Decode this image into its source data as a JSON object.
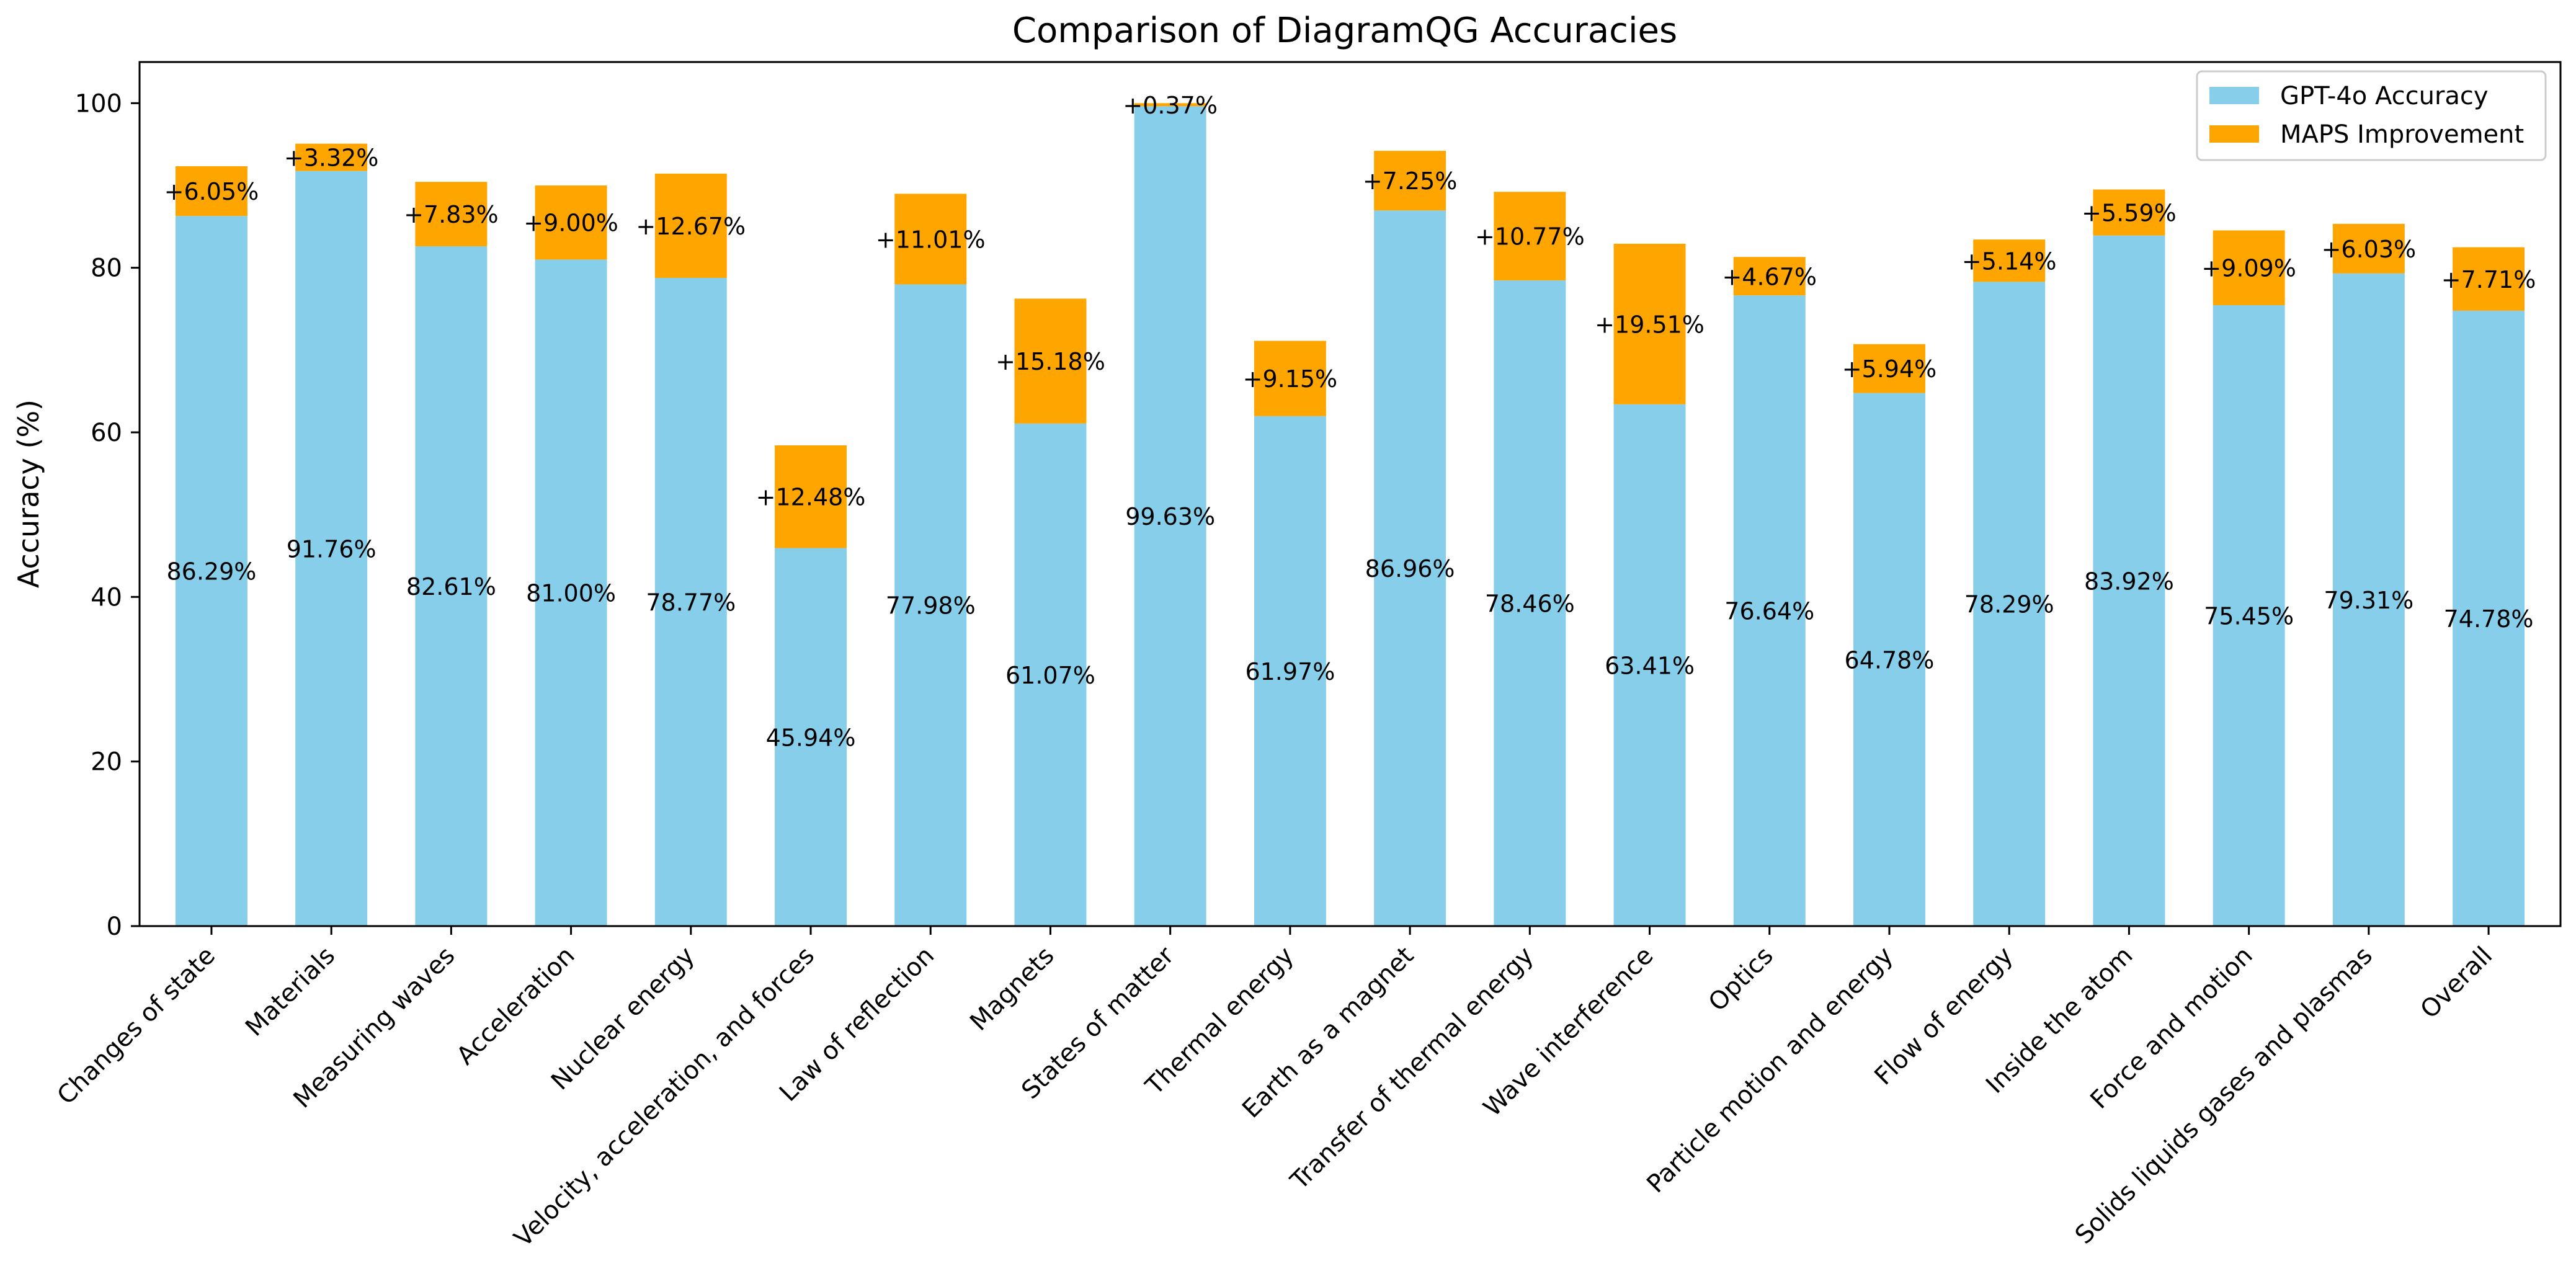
{
  "chart_data": {
    "type": "bar",
    "stacked": true,
    "title": "Comparison of DiagramQG Accuracies",
    "xlabel": "",
    "ylabel": "Accuracy (%)",
    "ylim": [
      0,
      105
    ],
    "yticks": [
      0,
      20,
      40,
      60,
      80,
      100
    ],
    "grid": false,
    "legend_position": "top-right",
    "categories": [
      "Changes of state",
      "Materials",
      "Measuring waves",
      "Acceleration",
      "Nuclear energy",
      "Velocity, acceleration, and forces",
      "Law of reflection",
      "Magnets",
      "States of matter",
      "Thermal energy",
      "Earth as a magnet",
      "Transfer of thermal energy",
      "Wave interference",
      "Optics",
      "Particle motion and energy",
      "Flow of energy",
      "Inside the atom",
      "Force and motion",
      "Solids liquids gases and plasmas",
      "Overall"
    ],
    "series": [
      {
        "name": "GPT-4o Accuracy",
        "color": "#87CEEB",
        "values": [
          86.29,
          91.76,
          82.61,
          81.0,
          78.77,
          45.94,
          77.98,
          61.07,
          99.63,
          61.97,
          86.96,
          78.46,
          63.41,
          76.64,
          64.78,
          78.29,
          83.92,
          75.45,
          79.31,
          74.78
        ],
        "labels": [
          "86.29%",
          "91.76%",
          "82.61%",
          "81.00%",
          "78.77%",
          "45.94%",
          "77.98%",
          "61.07%",
          "99.63%",
          "61.97%",
          "86.96%",
          "78.46%",
          "63.41%",
          "76.64%",
          "64.78%",
          "78.29%",
          "83.92%",
          "75.45%",
          "79.31%",
          "74.78%"
        ]
      },
      {
        "name": "MAPS Improvement",
        "color": "#FFA500",
        "values": [
          6.05,
          3.32,
          7.83,
          9.0,
          12.67,
          12.48,
          11.01,
          15.18,
          0.37,
          9.15,
          7.25,
          10.77,
          19.51,
          4.67,
          5.94,
          5.14,
          5.59,
          9.09,
          6.03,
          7.71
        ],
        "labels": [
          "+6.05%",
          "+3.32%",
          "+7.83%",
          "+9.00%",
          "+12.67%",
          "+12.48%",
          "+11.01%",
          "+15.18%",
          "+0.37%",
          "+9.15%",
          "+7.25%",
          "+10.77%",
          "+19.51%",
          "+4.67%",
          "+5.94%",
          "+5.14%",
          "+5.59%",
          "+9.09%",
          "+6.03%",
          "+7.71%"
        ]
      }
    ]
  }
}
